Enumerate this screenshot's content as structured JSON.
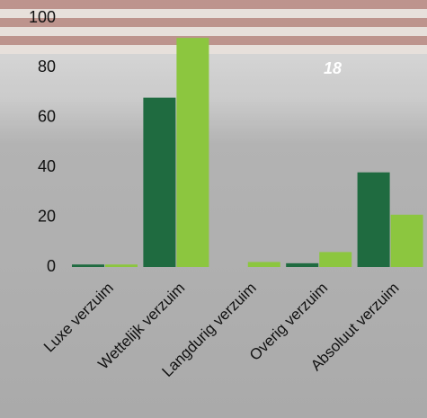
{
  "chart_data": {
    "type": "bar",
    "categories": [
      "Luxe verzuim",
      "Wettelijk verzuim",
      "Langdurig verzuim",
      "Overig verzuim",
      "Absoluut verzuim"
    ],
    "series": [
      {
        "color": "#1f6b40",
        "values": [
          1,
          68,
          0,
          1.5,
          38
        ]
      },
      {
        "color": "#8cc63f",
        "values": [
          1,
          92,
          2,
          6,
          21
        ]
      }
    ],
    "ylim": [
      0,
      100
    ],
    "yticks": [
      0,
      20,
      40,
      60,
      80,
      100
    ],
    "annotation": "18"
  }
}
